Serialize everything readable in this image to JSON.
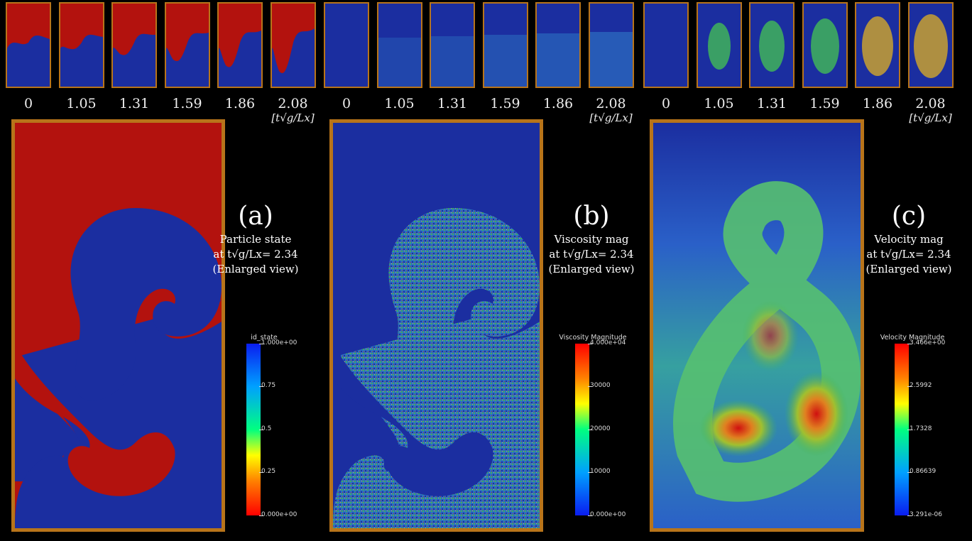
{
  "time_labels": [
    "0",
    "1.05",
    "1.31",
    "1.59",
    "1.86",
    "2.08"
  ],
  "time_unit": "[t√g/Lx]",
  "panels": [
    {
      "tag": "(a)",
      "line1": "Particle state",
      "line2": "at t√g/Lx= 2.34",
      "line3": "(Enlarged view)",
      "colorbar": {
        "title": "id_state",
        "ticks": [
          "1.000e+00",
          "0.75",
          "0.5",
          "0.25",
          "0.000e+00"
        ],
        "gradient": "linear-gradient(#0a1df0,#00a0ff 25%,#00ff80 50%,#ffff00 65%,#ff8000 80%,#ff0000)"
      }
    },
    {
      "tag": "(b)",
      "line1": "Viscosity mag",
      "line2": "at t√g/Lx= 2.34",
      "line3": "(Enlarged view)",
      "colorbar": {
        "title": "Viscosity Magnitude",
        "ticks": [
          "4.000e+04",
          "30000",
          "20000",
          "10000",
          "0.000e+00"
        ],
        "gradient": "linear-gradient(#ff0000,#ff8000 20%,#ffff00 35%,#00ff80 50%,#00a0ff 75%,#0a1df0)"
      }
    },
    {
      "tag": "(c)",
      "line1": "Velocity mag",
      "line2": "at t√g/Lx= 2.34",
      "line3": "(Enlarged view)",
      "colorbar": {
        "title": "Velocity Magnitude",
        "ticks": [
          "3.466e+00",
          "2.5992",
          "1.7328",
          "0.86639",
          "3.291e-06"
        ],
        "gradient": "linear-gradient(#ff0000,#ff8000 20%,#ffff00 35%,#00ff80 50%,#00a0ff 75%,#0a1df0)"
      }
    }
  ],
  "colors": {
    "red": "#b3120e",
    "blue": "#1b2ea0",
    "frame": "#b8741a",
    "green": "#3fb35a"
  }
}
